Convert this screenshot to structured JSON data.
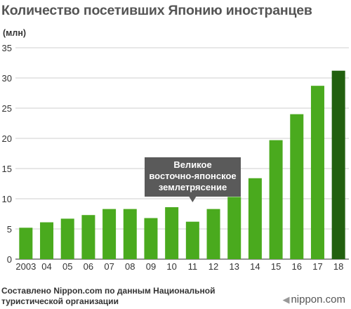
{
  "title": "Количество посетивших Японию иностранцев",
  "unit_label": "(млн)",
  "chart_data": {
    "type": "bar",
    "title": "Количество посетивших Японию иностранцев",
    "ylabel": "(млн)",
    "xlabel": "",
    "categories": [
      "2003",
      "04",
      "05",
      "06",
      "07",
      "08",
      "09",
      "10",
      "11",
      "12",
      "13",
      "14",
      "15",
      "16",
      "17",
      "18"
    ],
    "values": [
      5.2,
      6.1,
      6.7,
      7.3,
      8.3,
      8.3,
      6.8,
      8.6,
      6.2,
      8.3,
      10.3,
      13.4,
      19.7,
      24.0,
      28.7,
      31.2
    ],
    "ylim": [
      0,
      35
    ],
    "yticks": [
      0,
      5,
      10,
      15,
      20,
      25,
      30,
      35
    ],
    "grid": true,
    "colors": {
      "bar": "#4aaa1e",
      "highlight_bar": "#22600f",
      "highlight_index": 15
    },
    "annotation": {
      "lines": [
        "Великое",
        "восточно-японское",
        "землетрясение"
      ],
      "category": "11",
      "color": "#5a5a5a"
    }
  },
  "footer": {
    "lines": [
      "Составлено Nippon.com по данным Национальной",
      "туристической организации"
    ]
  },
  "brand": {
    "mark": "◀",
    "text": "nippon.com"
  }
}
